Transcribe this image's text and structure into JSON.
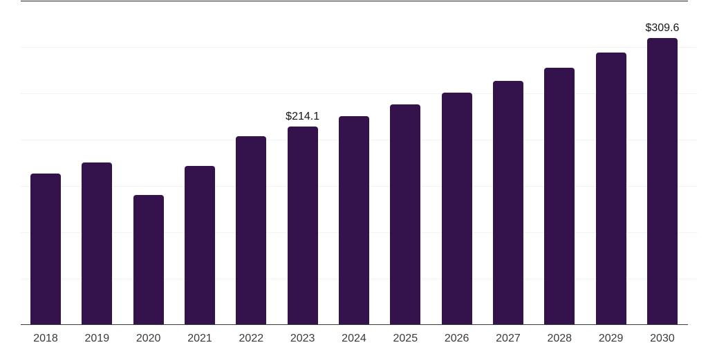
{
  "chart_data": {
    "type": "bar",
    "title": "",
    "xlabel": "",
    "ylabel": "",
    "categories": [
      "2018",
      "2019",
      "2020",
      "2021",
      "2022",
      "2023",
      "2024",
      "2025",
      "2026",
      "2027",
      "2028",
      "2029",
      "2030"
    ],
    "values": [
      163.4,
      175.3,
      140.2,
      171.6,
      203.7,
      214.1,
      225.3,
      238.0,
      250.7,
      263.3,
      277.5,
      293.9,
      309.6
    ],
    "point_labels": [
      "",
      "",
      "",
      "",
      "",
      "$214.1",
      "",
      "",
      "",
      "",
      "",
      "",
      "$309.6"
    ],
    "ylim": [
      0,
      350
    ],
    "grid_step": 50,
    "grid": true,
    "legend_position": "none",
    "colors": {
      "bar": "#34124b",
      "top_border": "#242424",
      "axis_line": "#3a3a3a",
      "gridline": "#f2f2f2",
      "tick_label": "#3a3a3a",
      "data_label": "#161616",
      "background": "#ffffff"
    }
  }
}
